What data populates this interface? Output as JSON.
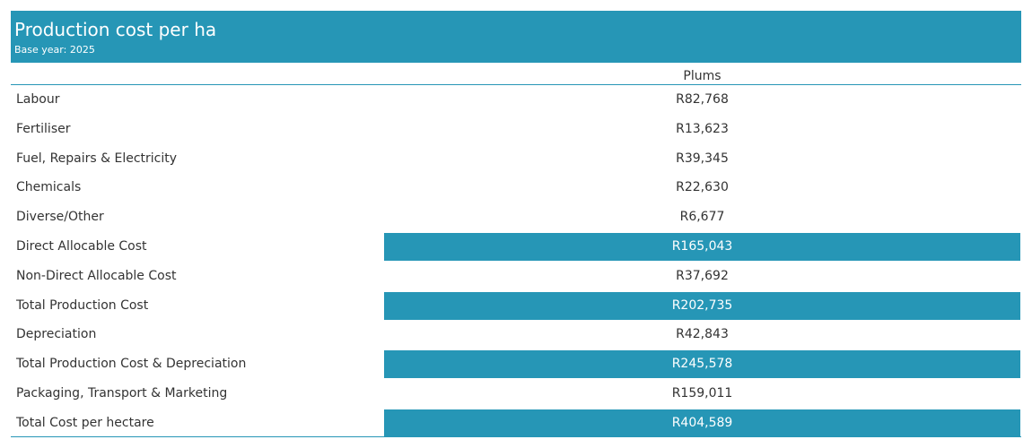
{
  "header": {
    "title": "Production cost per ha",
    "subtitle": "Base year: 2025"
  },
  "accent_color": "#2696b6",
  "chart_data": {
    "type": "table",
    "column": "Plums",
    "rows": [
      {
        "label": "Labour",
        "value": "R82,768",
        "highlight": false
      },
      {
        "label": "Fertiliser",
        "value": "R13,623",
        "highlight": false
      },
      {
        "label": "Fuel, Repairs & Electricity",
        "value": "R39,345",
        "highlight": false
      },
      {
        "label": "Chemicals",
        "value": "R22,630",
        "highlight": false
      },
      {
        "label": "Diverse/Other",
        "value": "R6,677",
        "highlight": false
      },
      {
        "label": "Direct Allocable Cost",
        "value": "R165,043",
        "highlight": true
      },
      {
        "label": "Non-Direct Allocable Cost",
        "value": "R37,692",
        "highlight": false
      },
      {
        "label": "Total Production Cost",
        "value": "R202,735",
        "highlight": true
      },
      {
        "label": "Depreciation",
        "value": "R42,843",
        "highlight": false
      },
      {
        "label": "Total Production Cost & Depreciation",
        "value": "R245,578",
        "highlight": true
      },
      {
        "label": "Packaging, Transport & Marketing",
        "value": "R159,011",
        "highlight": false
      },
      {
        "label": "Total Cost per hectare",
        "value": "R404,589",
        "highlight": true
      }
    ]
  }
}
